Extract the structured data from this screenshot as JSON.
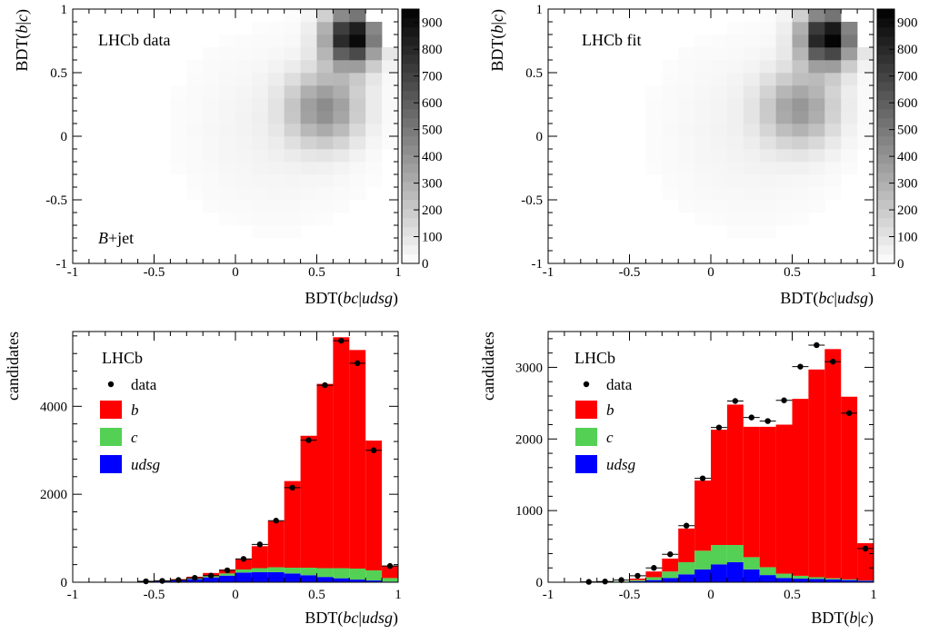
{
  "colors": {
    "b": "#ff0000",
    "c": "#54d054",
    "udsg": "#0000ff",
    "data": "#000000"
  },
  "chart_data": [
    {
      "type": "heatmap",
      "panel": "top-left",
      "label": "LHCb data",
      "corner_label": "B+jet",
      "xlabel": "BDT(bc|udsg)",
      "ylabel": "BDT(b|c)",
      "xlim": [
        -1,
        1
      ],
      "ylim": [
        -1,
        1
      ],
      "xticks": [
        "-1",
        "-0.5",
        "0",
        "0.5",
        "1"
      ],
      "yticks": [
        "-1",
        "-0.5",
        "0",
        "0.5",
        "1"
      ],
      "colorbar_ticks": [
        "0",
        "100",
        "200",
        "300",
        "400",
        "500",
        "600",
        "700",
        "800",
        "900"
      ],
      "zmax": 950,
      "x_edges": [
        -1,
        1
      ],
      "y_edges": [
        -1,
        1
      ]
    },
    {
      "type": "heatmap",
      "panel": "top-right",
      "label": "LHCb fit",
      "xlabel": "BDT(bc|udsg)",
      "ylabel": "BDT(b|c)",
      "xlim": [
        -1,
        1
      ],
      "ylim": [
        -1,
        1
      ],
      "xticks": [
        "-1",
        "-0.5",
        "0",
        "0.5",
        "1"
      ],
      "yticks": [
        "-1",
        "-0.5",
        "0",
        "0.5",
        "1"
      ],
      "colorbar_ticks": [
        "0",
        "100",
        "200",
        "300",
        "400",
        "500",
        "600",
        "700",
        "800",
        "900"
      ],
      "zmax": 950
    },
    {
      "type": "bar",
      "panel": "bottom-left",
      "stacked": true,
      "label": "LHCb",
      "xlabel": "BDT(bc|udsg)",
      "ylabel": "candidates",
      "xlim": [
        -1,
        1
      ],
      "ylim": [
        0,
        5700
      ],
      "xticks": [
        "-1",
        "-0.5",
        "0",
        "0.5",
        "1"
      ],
      "yticks": [
        {
          "v": 0,
          "t": "0"
        },
        {
          "v": 2000,
          "t": "2000"
        },
        {
          "v": 4000,
          "t": "4000"
        }
      ],
      "x_edges": [
        -0.9,
        -0.8,
        -0.7,
        -0.6,
        -0.5,
        -0.4,
        -0.3,
        -0.2,
        -0.1,
        0.0,
        0.1,
        0.2,
        0.3,
        0.4,
        0.5,
        0.6,
        0.7,
        0.8,
        0.9,
        1.0
      ],
      "series": [
        {
          "name": "udsg",
          "values": [
            0,
            0,
            0,
            10,
            20,
            40,
            70,
            110,
            150,
            220,
            230,
            230,
            200,
            160,
            120,
            90,
            60,
            40,
            15
          ]
        },
        {
          "name": "c",
          "values": [
            0,
            0,
            0,
            0,
            5,
            10,
            15,
            30,
            50,
            70,
            90,
            110,
            130,
            170,
            200,
            230,
            250,
            230,
            80
          ]
        },
        {
          "name": "b",
          "values": [
            0,
            0,
            0,
            0,
            5,
            20,
            40,
            70,
            90,
            240,
            500,
            1050,
            1970,
            3000,
            4190,
            5250,
            4970,
            2950,
            280
          ]
        }
      ],
      "data_points": {
        "name": "data",
        "x": [
          -0.55,
          -0.45,
          -0.35,
          -0.25,
          -0.15,
          -0.05,
          0.05,
          0.15,
          0.25,
          0.35,
          0.45,
          0.55,
          0.65,
          0.75,
          0.85,
          0.95
        ],
        "y": [
          20,
          30,
          50,
          100,
          150,
          270,
          530,
          860,
          1400,
          2150,
          3230,
          4480,
          5490,
          4980,
          3000,
          370
        ]
      },
      "legend": [
        "data",
        "b",
        "c",
        "udsg"
      ]
    },
    {
      "type": "bar",
      "panel": "bottom-right",
      "stacked": true,
      "label": "LHCb",
      "xlabel": "BDT(b|c)",
      "ylabel": "candidates",
      "xlim": [
        -1,
        1
      ],
      "ylim": [
        0,
        3500
      ],
      "xticks": [
        "-1",
        "-0.5",
        "0",
        "0.5",
        "1"
      ],
      "yticks": [
        {
          "v": 0,
          "t": "0"
        },
        {
          "v": 1000,
          "t": "1000"
        },
        {
          "v": 2000,
          "t": "2000"
        },
        {
          "v": 3000,
          "t": "3000"
        }
      ],
      "x_edges": [
        -0.8,
        -0.7,
        -0.6,
        -0.5,
        -0.4,
        -0.3,
        -0.2,
        -0.1,
        0.0,
        0.1,
        0.2,
        0.3,
        0.4,
        0.5,
        0.6,
        0.7,
        0.8,
        0.9,
        1.0
      ],
      "series": [
        {
          "name": "udsg",
          "values": [
            0,
            2,
            5,
            15,
            30,
            60,
            110,
            180,
            250,
            280,
            180,
            100,
            60,
            50,
            45,
            40,
            30,
            20
          ]
        },
        {
          "name": "c",
          "values": [
            0,
            2,
            5,
            15,
            40,
            90,
            170,
            260,
            270,
            240,
            170,
            110,
            60,
            40,
            25,
            15,
            10,
            5
          ]
        },
        {
          "name": "b",
          "values": [
            0,
            0,
            0,
            20,
            80,
            180,
            470,
            980,
            1610,
            1960,
            1820,
            1960,
            2080,
            2470,
            2900,
            3200,
            2550,
            520
          ]
        }
      ],
      "data_points": {
        "name": "data",
        "x": [
          -0.75,
          -0.65,
          -0.55,
          -0.45,
          -0.35,
          -0.25,
          -0.15,
          -0.05,
          0.05,
          0.15,
          0.25,
          0.35,
          0.45,
          0.55,
          0.65,
          0.75,
          0.85,
          0.95
        ],
        "y": [
          5,
          10,
          30,
          90,
          200,
          390,
          790,
          1450,
          2160,
          2530,
          2300,
          2250,
          2540,
          3010,
          3310,
          3080,
          2360,
          470
        ]
      },
      "legend": [
        "data",
        "b",
        "c",
        "udsg"
      ]
    }
  ]
}
